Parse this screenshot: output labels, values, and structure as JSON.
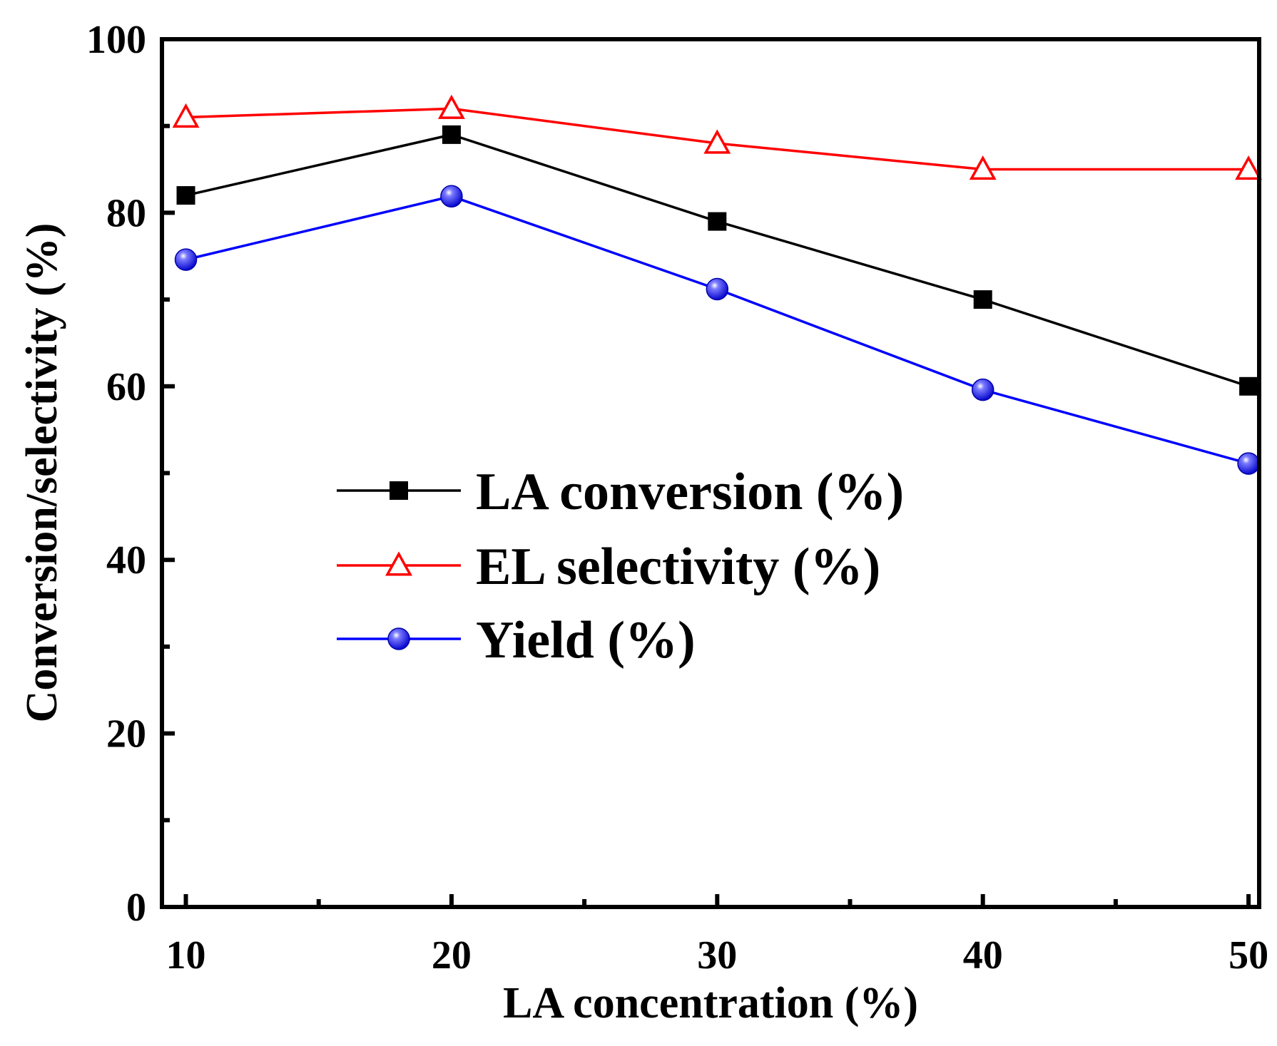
{
  "chart_data": {
    "type": "line",
    "xlabel": "LA concentration (%)",
    "ylabel": "Conversion/selectivity (%)",
    "xlim": [
      9.1,
      50.4
    ],
    "ylim": [
      0,
      100
    ],
    "x_ticks": [
      "10",
      "20",
      "30",
      "40",
      "50"
    ],
    "y_ticks": [
      "0",
      "20",
      "40",
      "60",
      "80",
      "100"
    ],
    "x": [
      10,
      20,
      30,
      40,
      50
    ],
    "legend_position": "center",
    "series": [
      {
        "name": "LA conversion (%)",
        "marker": "square",
        "color": "#000000",
        "values": [
          82,
          89,
          79,
          70,
          60
        ]
      },
      {
        "name": "EL selectivity (%)",
        "marker": "triangle",
        "color": "#ff0000",
        "values": [
          91,
          92,
          88,
          85,
          85
        ]
      },
      {
        "name": "Yield (%)",
        "marker": "sphere",
        "color": "#0000ff",
        "values": [
          74.6,
          81.9,
          71.2,
          59.6,
          51.1
        ]
      }
    ]
  }
}
